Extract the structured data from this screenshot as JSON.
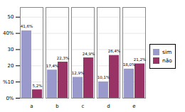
{
  "chart_data": {
    "type": "bar",
    "categories": [
      "a",
      "b",
      "c",
      "d",
      "e"
    ],
    "series": [
      {
        "name": "sim",
        "color": "#9999cc",
        "values": [
          41.6,
          17.4,
          12.9,
          10.1,
          18.0
        ],
        "value_labels": [
          "41,6%",
          "17,4%",
          "12,9%",
          "10,1%",
          "18,0%"
        ]
      },
      {
        "name": "não",
        "color": "#993366",
        "values": [
          5.2,
          22.3,
          24.9,
          26.4,
          21.2
        ],
        "value_labels": [
          "5,2%",
          "22,3%",
          "24,9%",
          "26,4%",
          "21,2%"
        ]
      }
    ],
    "ylim": [
      0,
      56
    ],
    "yticks": [
      {
        "value": 0,
        "label": "0%"
      },
      {
        "value": 10,
        "label": "%10"
      },
      20,
      30,
      {
        "value": 40,
        "label": "40%"
      },
      50
    ],
    "grid": true,
    "legend": "right",
    "data_labels": true
  }
}
